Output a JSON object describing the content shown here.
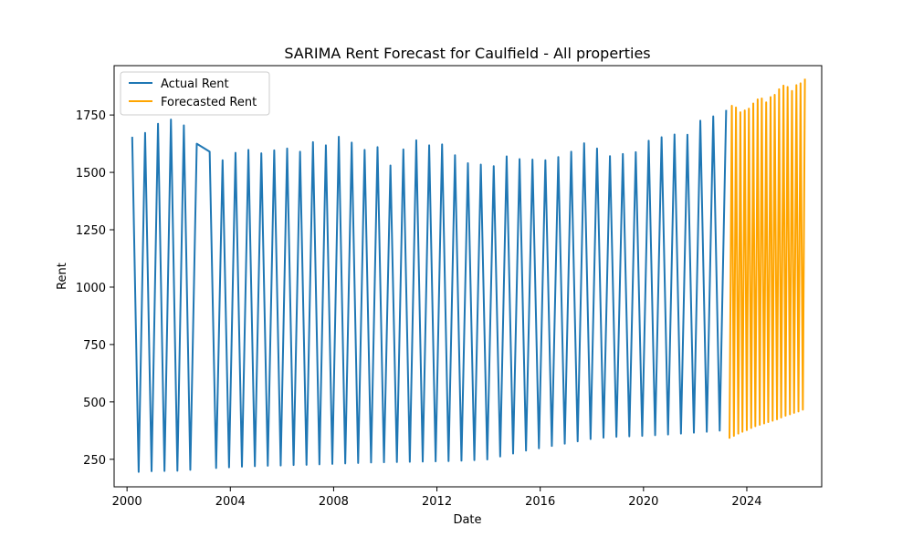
{
  "chart_data": {
    "type": "line",
    "title": "SARIMA Rent Forecast for Caulfield - All properties",
    "xlabel": "Date",
    "ylabel": "Rent",
    "xlim": [
      1999.5,
      2026.9
    ],
    "ylim": [
      130,
      1965
    ],
    "x_ticks": [
      2000,
      2004,
      2008,
      2012,
      2016,
      2020,
      2024
    ],
    "x_tick_labels": [
      "2000",
      "2004",
      "2008",
      "2012",
      "2016",
      "2020",
      "2024"
    ],
    "y_ticks": [
      250,
      500,
      750,
      1000,
      1250,
      1500,
      1750
    ],
    "y_tick_labels": [
      "250",
      "500",
      "750",
      "1000",
      "1250",
      "1500",
      "1750"
    ],
    "grid": false,
    "legend_position": "top-left",
    "series": [
      {
        "name": "Actual Rent",
        "color": "#1f77b4",
        "points": [
          [
            2000.2,
            1655
          ],
          [
            2000.45,
            195
          ],
          [
            2000.7,
            1672
          ],
          [
            2000.95,
            198
          ],
          [
            2001.2,
            1712
          ],
          [
            2001.45,
            199
          ],
          [
            2001.7,
            1730
          ],
          [
            2001.95,
            200
          ],
          [
            2002.2,
            1705
          ],
          [
            2002.45,
            204
          ],
          [
            2002.7,
            1625
          ],
          [
            2003.2,
            1590
          ],
          [
            2003.45,
            212
          ],
          [
            2003.7,
            1553
          ],
          [
            2003.95,
            215
          ],
          [
            2004.2,
            1585
          ],
          [
            2004.45,
            218
          ],
          [
            2004.7,
            1598
          ],
          [
            2004.95,
            220
          ],
          [
            2005.2,
            1583
          ],
          [
            2005.45,
            222
          ],
          [
            2005.7,
            1596
          ],
          [
            2005.95,
            223
          ],
          [
            2006.2,
            1604
          ],
          [
            2006.45,
            225
          ],
          [
            2006.7,
            1590
          ],
          [
            2006.95,
            226
          ],
          [
            2007.2,
            1632
          ],
          [
            2007.45,
            228
          ],
          [
            2007.7,
            1618
          ],
          [
            2007.95,
            230
          ],
          [
            2008.2,
            1655
          ],
          [
            2008.45,
            232
          ],
          [
            2008.7,
            1630
          ],
          [
            2008.95,
            234
          ],
          [
            2009.2,
            1598
          ],
          [
            2009.45,
            236
          ],
          [
            2009.7,
            1610
          ],
          [
            2009.95,
            237
          ],
          [
            2010.2,
            1530
          ],
          [
            2010.45,
            238
          ],
          [
            2010.7,
            1600
          ],
          [
            2010.95,
            239
          ],
          [
            2011.2,
            1640
          ],
          [
            2011.45,
            240
          ],
          [
            2011.7,
            1618
          ],
          [
            2011.95,
            241
          ],
          [
            2012.2,
            1622
          ],
          [
            2012.45,
            242
          ],
          [
            2012.7,
            1575
          ],
          [
            2012.95,
            244
          ],
          [
            2013.2,
            1540
          ],
          [
            2013.45,
            246
          ],
          [
            2013.7,
            1534
          ],
          [
            2013.95,
            249
          ],
          [
            2014.2,
            1527
          ],
          [
            2014.45,
            262
          ],
          [
            2014.7,
            1570
          ],
          [
            2014.95,
            275
          ],
          [
            2015.2,
            1558
          ],
          [
            2015.45,
            288
          ],
          [
            2015.7,
            1556
          ],
          [
            2015.95,
            298
          ],
          [
            2016.2,
            1553
          ],
          [
            2016.45,
            308
          ],
          [
            2016.7,
            1567
          ],
          [
            2016.95,
            318
          ],
          [
            2017.2,
            1590
          ],
          [
            2017.45,
            328
          ],
          [
            2017.7,
            1627
          ],
          [
            2017.95,
            338
          ],
          [
            2018.2,
            1604
          ],
          [
            2018.45,
            344
          ],
          [
            2018.7,
            1571
          ],
          [
            2018.95,
            348
          ],
          [
            2019.2,
            1580
          ],
          [
            2019.45,
            350
          ],
          [
            2019.7,
            1588
          ],
          [
            2019.95,
            352
          ],
          [
            2020.2,
            1638
          ],
          [
            2020.45,
            355
          ],
          [
            2020.7,
            1653
          ],
          [
            2020.95,
            358
          ],
          [
            2021.2,
            1665
          ],
          [
            2021.45,
            362
          ],
          [
            2021.7,
            1664
          ],
          [
            2021.95,
            366
          ],
          [
            2022.2,
            1725
          ],
          [
            2022.45,
            370
          ],
          [
            2022.7,
            1744
          ],
          [
            2022.95,
            375
          ],
          [
            2023.2,
            1772
          ]
        ]
      },
      {
        "name": "Forecasted Rent",
        "color": "#ffa500",
        "points": [
          [
            2023.33,
            340
          ],
          [
            2023.42,
            1790
          ],
          [
            2023.5,
            352
          ],
          [
            2023.58,
            1783
          ],
          [
            2023.67,
            362
          ],
          [
            2023.75,
            1762
          ],
          [
            2023.83,
            370
          ],
          [
            2023.92,
            1770
          ],
          [
            2024.0,
            377
          ],
          [
            2024.08,
            1778
          ],
          [
            2024.17,
            386
          ],
          [
            2024.25,
            1800
          ],
          [
            2024.33,
            394
          ],
          [
            2024.42,
            1818
          ],
          [
            2024.5,
            400
          ],
          [
            2024.58,
            1822
          ],
          [
            2024.67,
            406
          ],
          [
            2024.75,
            1805
          ],
          [
            2024.83,
            412
          ],
          [
            2024.92,
            1828
          ],
          [
            2025.0,
            418
          ],
          [
            2025.08,
            1838
          ],
          [
            2025.17,
            424
          ],
          [
            2025.25,
            1862
          ],
          [
            2025.33,
            432
          ],
          [
            2025.42,
            1878
          ],
          [
            2025.5,
            440
          ],
          [
            2025.58,
            1872
          ],
          [
            2025.67,
            446
          ],
          [
            2025.75,
            1855
          ],
          [
            2025.83,
            452
          ],
          [
            2025.92,
            1880
          ],
          [
            2026.0,
            458
          ],
          [
            2026.08,
            1888
          ],
          [
            2026.17,
            466
          ],
          [
            2026.25,
            1908
          ]
        ]
      }
    ]
  }
}
